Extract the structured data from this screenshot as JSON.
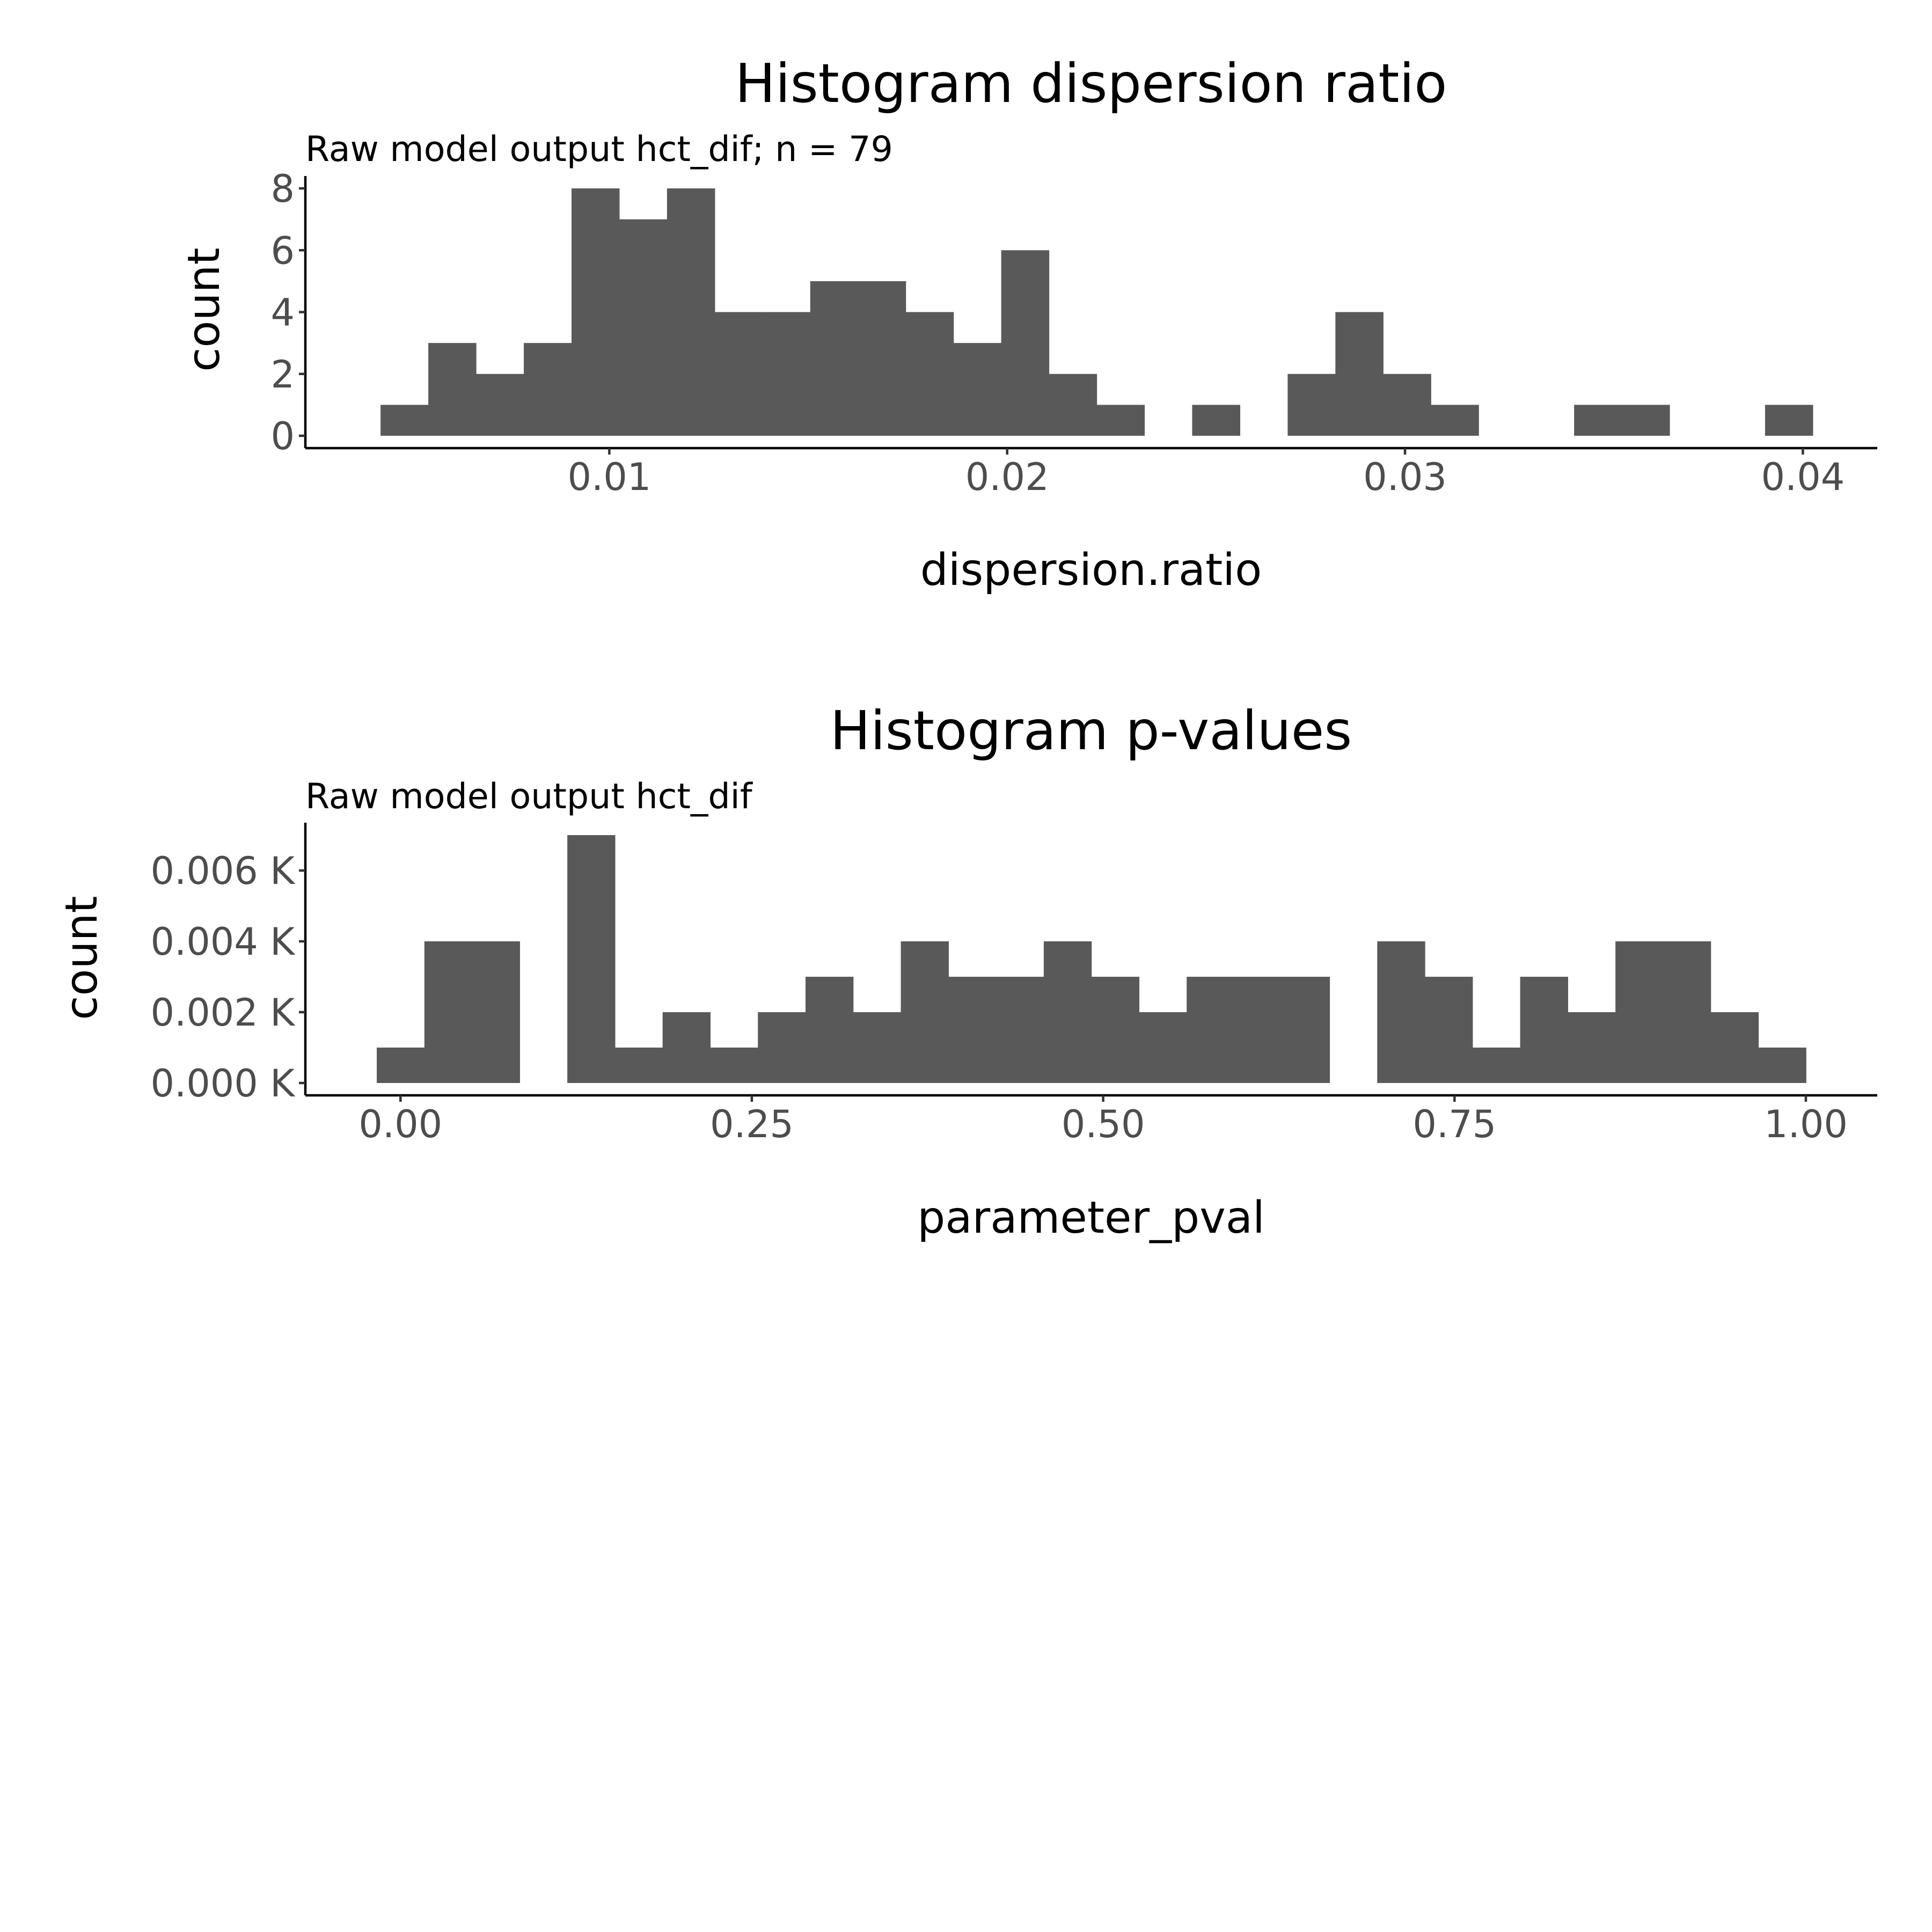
{
  "chart_data": [
    {
      "type": "bar",
      "title": "Histogram dispersion ratio",
      "subtitle": "Raw model output hct_dif; n = 79",
      "xlabel": "dispersion.ratio",
      "ylabel": "count",
      "bin_width": 0.0012,
      "bin_start": 0.00425,
      "values": [
        1,
        3,
        2,
        3,
        8,
        7,
        8,
        4,
        4,
        5,
        5,
        4,
        3,
        6,
        2,
        1,
        0,
        1,
        0,
        2,
        4,
        2,
        1,
        0,
        0,
        1,
        1,
        0,
        0,
        1
      ],
      "xlim": [
        0.00236,
        0.04187
      ],
      "ylim": [
        0,
        8.4
      ],
      "x_ticks": [
        0.01,
        0.02,
        0.03,
        0.04
      ],
      "x_tick_labels": [
        "0.01",
        "0.02",
        "0.03",
        "0.04"
      ],
      "y_ticks": [
        0,
        2,
        4,
        6,
        8
      ],
      "y_tick_labels": [
        "0",
        "2",
        "4",
        "6",
        "8"
      ],
      "bar_color": "#595959",
      "grid": false
    },
    {
      "type": "bar",
      "title": "Histogram p-values",
      "subtitle": "Raw model output hct_dif",
      "xlabel": "parameter_pval",
      "ylabel": "count",
      "bin_width": 0.0339,
      "bin_start": -0.0169,
      "values": [
        1,
        4,
        4,
        0,
        7,
        1,
        2,
        1,
        2,
        3,
        2,
        4,
        3,
        3,
        4,
        3,
        2,
        3,
        3,
        3,
        0,
        4,
        3,
        1,
        3,
        2,
        4,
        4,
        2,
        1
      ],
      "xlim": [
        -0.0677,
        1.0508
      ],
      "ylim": [
        0,
        7.35
      ],
      "x_ticks": [
        0.0,
        0.25,
        0.5,
        0.75,
        1.0
      ],
      "x_tick_labels": [
        "0.00",
        "0.25",
        "0.50",
        "0.75",
        "1.00"
      ],
      "y_ticks": [
        0,
        2,
        4,
        6
      ],
      "y_tick_labels": [
        "0.000 K",
        "0.002 K",
        "0.004 K",
        "0.006 K"
      ],
      "bar_color": "#595959",
      "grid": false
    }
  ]
}
